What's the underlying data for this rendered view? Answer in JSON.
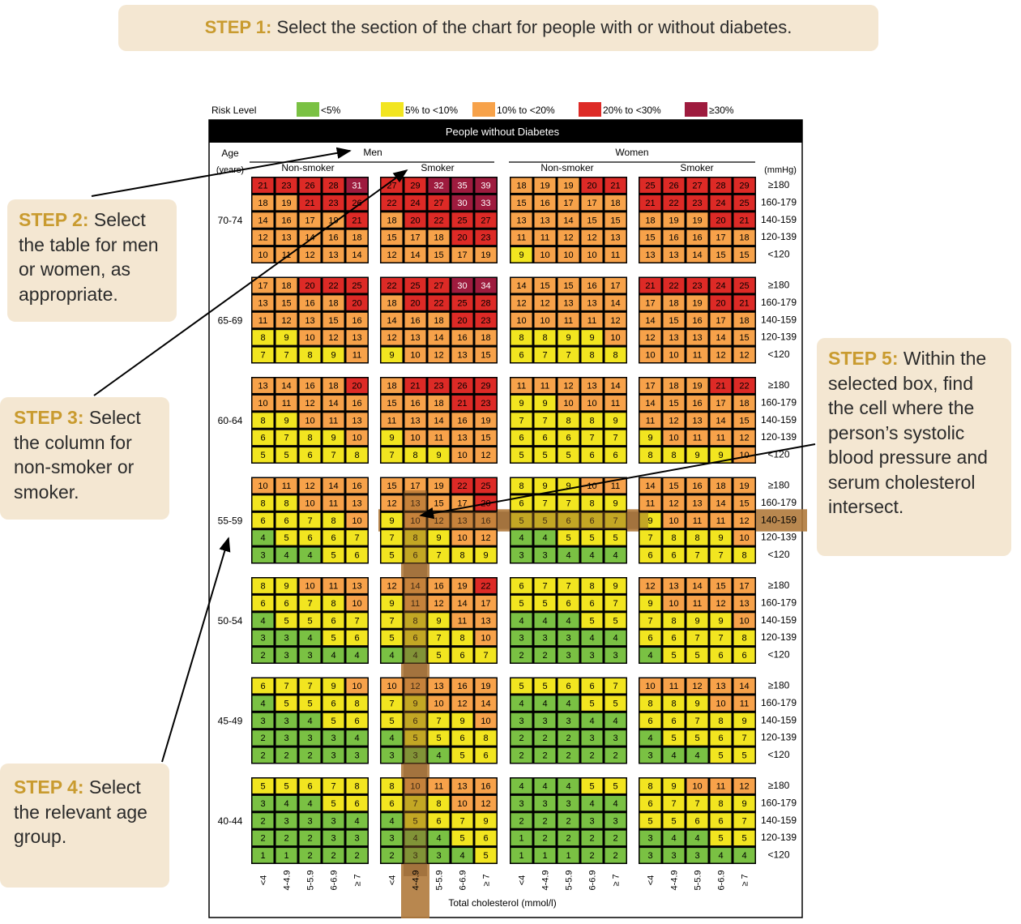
{
  "steps": {
    "step1": {
      "label": "STEP 1:",
      "text": "Select the section of the chart for people with or without diabetes."
    },
    "step2": {
      "label": "STEP 2:",
      "text": "Select the table for men or women, as appropriate."
    },
    "step3": {
      "label": "STEP 3:",
      "text": "Select the column for non-smoker or smoker."
    },
    "step4": {
      "label": "STEP 4:",
      "text": "Select the relevant age group."
    },
    "step5": {
      "label": "STEP 5:",
      "text": "Within the selected box, find the cell where the person’s systolic blood pressure and serum cholesterol intersect."
    }
  },
  "legend": {
    "title": "Risk Level",
    "items": [
      {
        "label": "<5%",
        "color": "#7ac143"
      },
      {
        "label": "5% to <10%",
        "color": "#f2e520"
      },
      {
        "label": "10% to <20%",
        "color": "#f7a24a"
      },
      {
        "label": "20% to <30%",
        "color": "#dd2a26"
      },
      {
        "label": "≥30%",
        "color": "#9e1b3e"
      }
    ]
  },
  "chart": {
    "title": "People without Diabetes",
    "age_header": "Age",
    "age_unit": "(years)",
    "bp_unit": "(mmHg)",
    "sex_labels": [
      "Men",
      "Women"
    ],
    "smoke_labels": [
      "Non-smoker",
      "Smoker",
      "Non-smoker",
      "Smoker"
    ],
    "age_groups": [
      "70-74",
      "65-69",
      "60-64",
      "55-59",
      "50-54",
      "45-49",
      "40-44"
    ],
    "bp_labels": [
      "≥180",
      "160-179",
      "140-159",
      "120-139",
      "<120"
    ],
    "chol_labels": [
      "<4",
      "4-4.9",
      "5-5.9",
      "6-6.9",
      "≥ 7"
    ],
    "x_label": "Total cholesterol (mmol/l)",
    "highlight": {
      "age_group": "55-59",
      "panel": "Men Smoker",
      "bp": "140-159",
      "cholesterol": "4-4.9",
      "value": 10
    }
  },
  "chart_data": {
    "type": "heatmap",
    "title": "People without Diabetes",
    "xlabel": "Total cholesterol (mmol/l)",
    "ylabel": "(mmHg)",
    "x_categories": [
      "<4",
      "4-4.9",
      "5-5.9",
      "6-6.9",
      "≥ 7"
    ],
    "y_categories": [
      "≥180",
      "160-179",
      "140-159",
      "120-139",
      "<120"
    ],
    "panels": [
      {
        "age": "70-74",
        "men_non_smoker": [
          [
            21,
            23,
            26,
            28,
            31
          ],
          [
            18,
            19,
            21,
            23,
            26
          ],
          [
            14,
            16,
            17,
            19,
            21
          ],
          [
            12,
            13,
            14,
            16,
            18
          ],
          [
            10,
            11,
            12,
            13,
            14
          ]
        ],
        "men_smoker": [
          [
            27,
            29,
            32,
            35,
            39
          ],
          [
            22,
            24,
            27,
            30,
            33
          ],
          [
            18,
            20,
            22,
            25,
            27
          ],
          [
            15,
            17,
            18,
            20,
            23
          ],
          [
            12,
            14,
            15,
            17,
            19
          ]
        ],
        "women_non_smoker": [
          [
            18,
            19,
            19,
            20,
            21
          ],
          [
            15,
            16,
            17,
            17,
            18
          ],
          [
            13,
            13,
            14,
            15,
            15
          ],
          [
            11,
            11,
            12,
            12,
            13
          ],
          [
            9,
            10,
            10,
            10,
            11
          ]
        ],
        "women_smoker": [
          [
            25,
            26,
            27,
            28,
            29
          ],
          [
            21,
            22,
            23,
            24,
            25
          ],
          [
            18,
            19,
            19,
            20,
            21
          ],
          [
            15,
            16,
            16,
            17,
            18
          ],
          [
            13,
            13,
            14,
            15,
            15
          ]
        ]
      },
      {
        "age": "65-69",
        "men_non_smoker": [
          [
            17,
            18,
            20,
            22,
            25
          ],
          [
            13,
            15,
            16,
            18,
            20
          ],
          [
            11,
            12,
            13,
            15,
            16
          ],
          [
            8,
            9,
            10,
            12,
            13
          ],
          [
            7,
            7,
            8,
            9,
            11
          ]
        ],
        "men_smoker": [
          [
            22,
            25,
            27,
            30,
            34
          ],
          [
            18,
            20,
            22,
            25,
            28
          ],
          [
            14,
            16,
            18,
            20,
            23
          ],
          [
            12,
            13,
            14,
            16,
            18
          ],
          [
            9,
            10,
            12,
            13,
            15
          ]
        ],
        "women_non_smoker": [
          [
            14,
            15,
            15,
            16,
            17
          ],
          [
            12,
            12,
            13,
            13,
            14
          ],
          [
            10,
            10,
            11,
            11,
            12
          ],
          [
            8,
            8,
            9,
            9,
            10
          ],
          [
            6,
            7,
            7,
            8,
            8
          ]
        ],
        "women_smoker": [
          [
            21,
            22,
            23,
            24,
            25
          ],
          [
            17,
            18,
            19,
            20,
            21
          ],
          [
            14,
            15,
            16,
            17,
            18
          ],
          [
            12,
            13,
            13,
            14,
            15
          ],
          [
            10,
            10,
            11,
            12,
            12
          ]
        ]
      },
      {
        "age": "60-64",
        "men_non_smoker": [
          [
            13,
            14,
            16,
            18,
            20
          ],
          [
            10,
            11,
            12,
            14,
            16
          ],
          [
            8,
            9,
            10,
            11,
            13
          ],
          [
            6,
            7,
            8,
            9,
            10
          ],
          [
            5,
            5,
            6,
            7,
            8
          ]
        ],
        "men_smoker": [
          [
            18,
            21,
            23,
            26,
            29
          ],
          [
            15,
            16,
            18,
            21,
            23
          ],
          [
            11,
            13,
            14,
            16,
            19
          ],
          [
            9,
            10,
            11,
            13,
            15
          ],
          [
            7,
            8,
            9,
            10,
            12
          ]
        ],
        "women_non_smoker": [
          [
            11,
            11,
            12,
            13,
            14
          ],
          [
            9,
            9,
            10,
            10,
            11
          ],
          [
            7,
            7,
            8,
            8,
            9
          ],
          [
            6,
            6,
            6,
            7,
            7
          ],
          [
            5,
            5,
            5,
            6,
            6
          ]
        ],
        "women_smoker": [
          [
            17,
            18,
            19,
            21,
            22
          ],
          [
            14,
            15,
            16,
            17,
            18
          ],
          [
            11,
            12,
            13,
            14,
            15
          ],
          [
            9,
            10,
            11,
            11,
            12
          ],
          [
            8,
            8,
            9,
            9,
            10
          ]
        ]
      },
      {
        "age": "55-59",
        "men_non_smoker": [
          [
            10,
            11,
            12,
            14,
            16
          ],
          [
            8,
            8,
            10,
            11,
            13
          ],
          [
            6,
            6,
            7,
            8,
            10
          ],
          [
            4,
            5,
            6,
            6,
            7
          ],
          [
            3,
            4,
            4,
            5,
            6
          ]
        ],
        "men_smoker": [
          [
            15,
            17,
            19,
            22,
            25
          ],
          [
            12,
            13,
            15,
            17,
            20
          ],
          [
            9,
            10,
            12,
            13,
            16
          ],
          [
            7,
            8,
            9,
            10,
            12
          ],
          [
            5,
            6,
            7,
            8,
            9
          ]
        ],
        "women_non_smoker": [
          [
            8,
            9,
            9,
            10,
            11
          ],
          [
            6,
            7,
            7,
            8,
            9
          ],
          [
            5,
            5,
            6,
            6,
            7
          ],
          [
            4,
            4,
            5,
            5,
            5
          ],
          [
            3,
            3,
            4,
            4,
            4
          ]
        ],
        "women_smoker": [
          [
            14,
            15,
            16,
            18,
            19
          ],
          [
            11,
            12,
            13,
            14,
            15
          ],
          [
            9,
            10,
            11,
            11,
            12
          ],
          [
            7,
            8,
            8,
            9,
            10
          ],
          [
            6,
            6,
            7,
            7,
            8
          ]
        ]
      },
      {
        "age": "50-54",
        "men_non_smoker": [
          [
            8,
            9,
            10,
            11,
            13
          ],
          [
            6,
            6,
            7,
            8,
            10
          ],
          [
            4,
            5,
            5,
            6,
            7
          ],
          [
            3,
            3,
            4,
            5,
            6
          ],
          [
            2,
            3,
            3,
            4,
            4
          ]
        ],
        "men_smoker": [
          [
            12,
            14,
            16,
            19,
            22
          ],
          [
            9,
            11,
            12,
            14,
            17
          ],
          [
            7,
            8,
            9,
            11,
            13
          ],
          [
            5,
            6,
            7,
            8,
            10
          ],
          [
            4,
            4,
            5,
            6,
            7
          ]
        ],
        "women_non_smoker": [
          [
            6,
            7,
            7,
            8,
            9
          ],
          [
            5,
            5,
            6,
            6,
            7
          ],
          [
            4,
            4,
            4,
            5,
            5
          ],
          [
            3,
            3,
            3,
            4,
            4
          ],
          [
            2,
            2,
            3,
            3,
            3
          ]
        ],
        "women_smoker": [
          [
            12,
            13,
            14,
            15,
            17
          ],
          [
            9,
            10,
            11,
            12,
            13
          ],
          [
            7,
            8,
            9,
            9,
            10
          ],
          [
            6,
            6,
            7,
            7,
            8
          ],
          [
            4,
            5,
            5,
            6,
            6
          ]
        ]
      },
      {
        "age": "45-49",
        "men_non_smoker": [
          [
            6,
            7,
            7,
            9,
            10
          ],
          [
            4,
            5,
            5,
            6,
            8
          ],
          [
            3,
            3,
            4,
            5,
            6
          ],
          [
            2,
            3,
            3,
            3,
            4
          ],
          [
            2,
            2,
            2,
            3,
            3
          ]
        ],
        "men_smoker": [
          [
            10,
            12,
            13,
            16,
            19
          ],
          [
            7,
            9,
            10,
            12,
            14
          ],
          [
            5,
            6,
            7,
            9,
            10
          ],
          [
            4,
            5,
            5,
            6,
            8
          ],
          [
            3,
            3,
            4,
            5,
            6
          ]
        ],
        "women_non_smoker": [
          [
            5,
            5,
            6,
            6,
            7
          ],
          [
            4,
            4,
            4,
            5,
            5
          ],
          [
            3,
            3,
            3,
            4,
            4
          ],
          [
            2,
            2,
            2,
            3,
            3
          ],
          [
            2,
            2,
            2,
            2,
            2
          ]
        ],
        "women_smoker": [
          [
            10,
            11,
            12,
            13,
            14
          ],
          [
            8,
            8,
            9,
            10,
            11
          ],
          [
            6,
            6,
            7,
            8,
            9
          ],
          [
            4,
            5,
            5,
            6,
            7
          ],
          [
            3,
            4,
            4,
            5,
            5
          ]
        ]
      },
      {
        "age": "40-44",
        "men_non_smoker": [
          [
            5,
            5,
            6,
            7,
            8
          ],
          [
            3,
            4,
            4,
            5,
            6
          ],
          [
            2,
            3,
            3,
            3,
            4
          ],
          [
            2,
            2,
            2,
            3,
            3
          ],
          [
            1,
            1,
            2,
            2,
            2
          ]
        ],
        "men_smoker": [
          [
            8,
            10,
            11,
            13,
            16
          ],
          [
            6,
            7,
            8,
            10,
            12
          ],
          [
            4,
            5,
            6,
            7,
            9
          ],
          [
            3,
            4,
            4,
            5,
            6
          ],
          [
            2,
            3,
            3,
            4,
            5
          ]
        ],
        "women_non_smoker": [
          [
            4,
            4,
            4,
            5,
            5
          ],
          [
            3,
            3,
            3,
            4,
            4
          ],
          [
            2,
            2,
            2,
            3,
            3
          ],
          [
            1,
            2,
            2,
            2,
            2
          ],
          [
            1,
            1,
            1,
            2,
            2
          ]
        ],
        "women_smoker": [
          [
            8,
            9,
            10,
            11,
            12
          ],
          [
            6,
            7,
            7,
            8,
            9
          ],
          [
            5,
            5,
            6,
            6,
            7
          ],
          [
            3,
            4,
            4,
            5,
            5
          ],
          [
            3,
            3,
            3,
            4,
            4
          ]
        ]
      }
    ]
  }
}
